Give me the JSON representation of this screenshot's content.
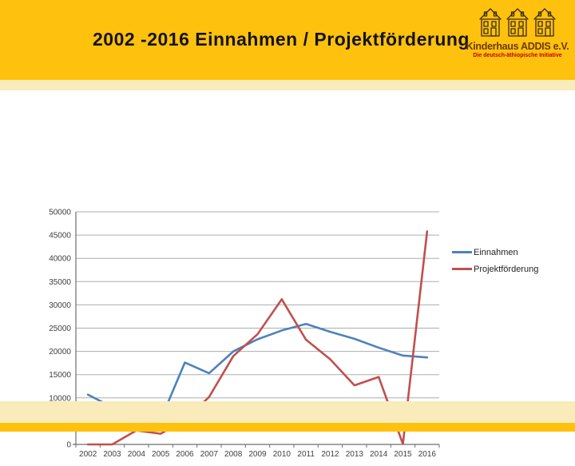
{
  "slide": {
    "title": "2002 -2016 Einnahmen / Projektförderung",
    "logo": {
      "name": "Kinderhaus ADDIS e.V.",
      "subtitle": "Die deutsch-äthiopische Initiative"
    }
  },
  "colors": {
    "band_amber": "#FEC10D",
    "band_pale": "#FAEBBB",
    "gridline": "#ADADAD",
    "axis": "#6E6E6E",
    "axis_text": "#3F3F3F",
    "logo_brown": "#6B3A08",
    "logo_red": "#C00000",
    "einnahmen": "#4F81BD",
    "projektfoerderung": "#C0504D"
  },
  "chart_data": {
    "type": "line",
    "title": "2002 -2016 Einnahmen / Projektförderung",
    "categories": [
      "2002",
      "2003",
      "2004",
      "2005",
      "2006",
      "2007",
      "2008",
      "2009",
      "2010",
      "2011",
      "2012",
      "2013",
      "2014",
      "2015",
      "2016"
    ],
    "series": [
      {
        "name": "Einnahmen",
        "color": "#4F81BD",
        "values": [
          10700,
          8000,
          5000,
          5300,
          17600,
          15300,
          20000,
          22600,
          24500,
          25900,
          24200,
          22700,
          20800,
          19100,
          18700
        ]
      },
      {
        "name": "Projektförderung",
        "color": "#C0504D",
        "values": [
          0,
          0,
          3000,
          2300,
          5300,
          10200,
          19000,
          23700,
          31200,
          22500,
          18300,
          12700,
          14500,
          100,
          45800
        ]
      }
    ],
    "xlabel": "",
    "ylabel": "",
    "ylim": [
      0,
      50000
    ],
    "yticks": [
      0,
      5000,
      10000,
      15000,
      20000,
      25000,
      30000,
      35000,
      40000,
      45000,
      50000
    ],
    "grid": true,
    "legend_position": "right"
  }
}
